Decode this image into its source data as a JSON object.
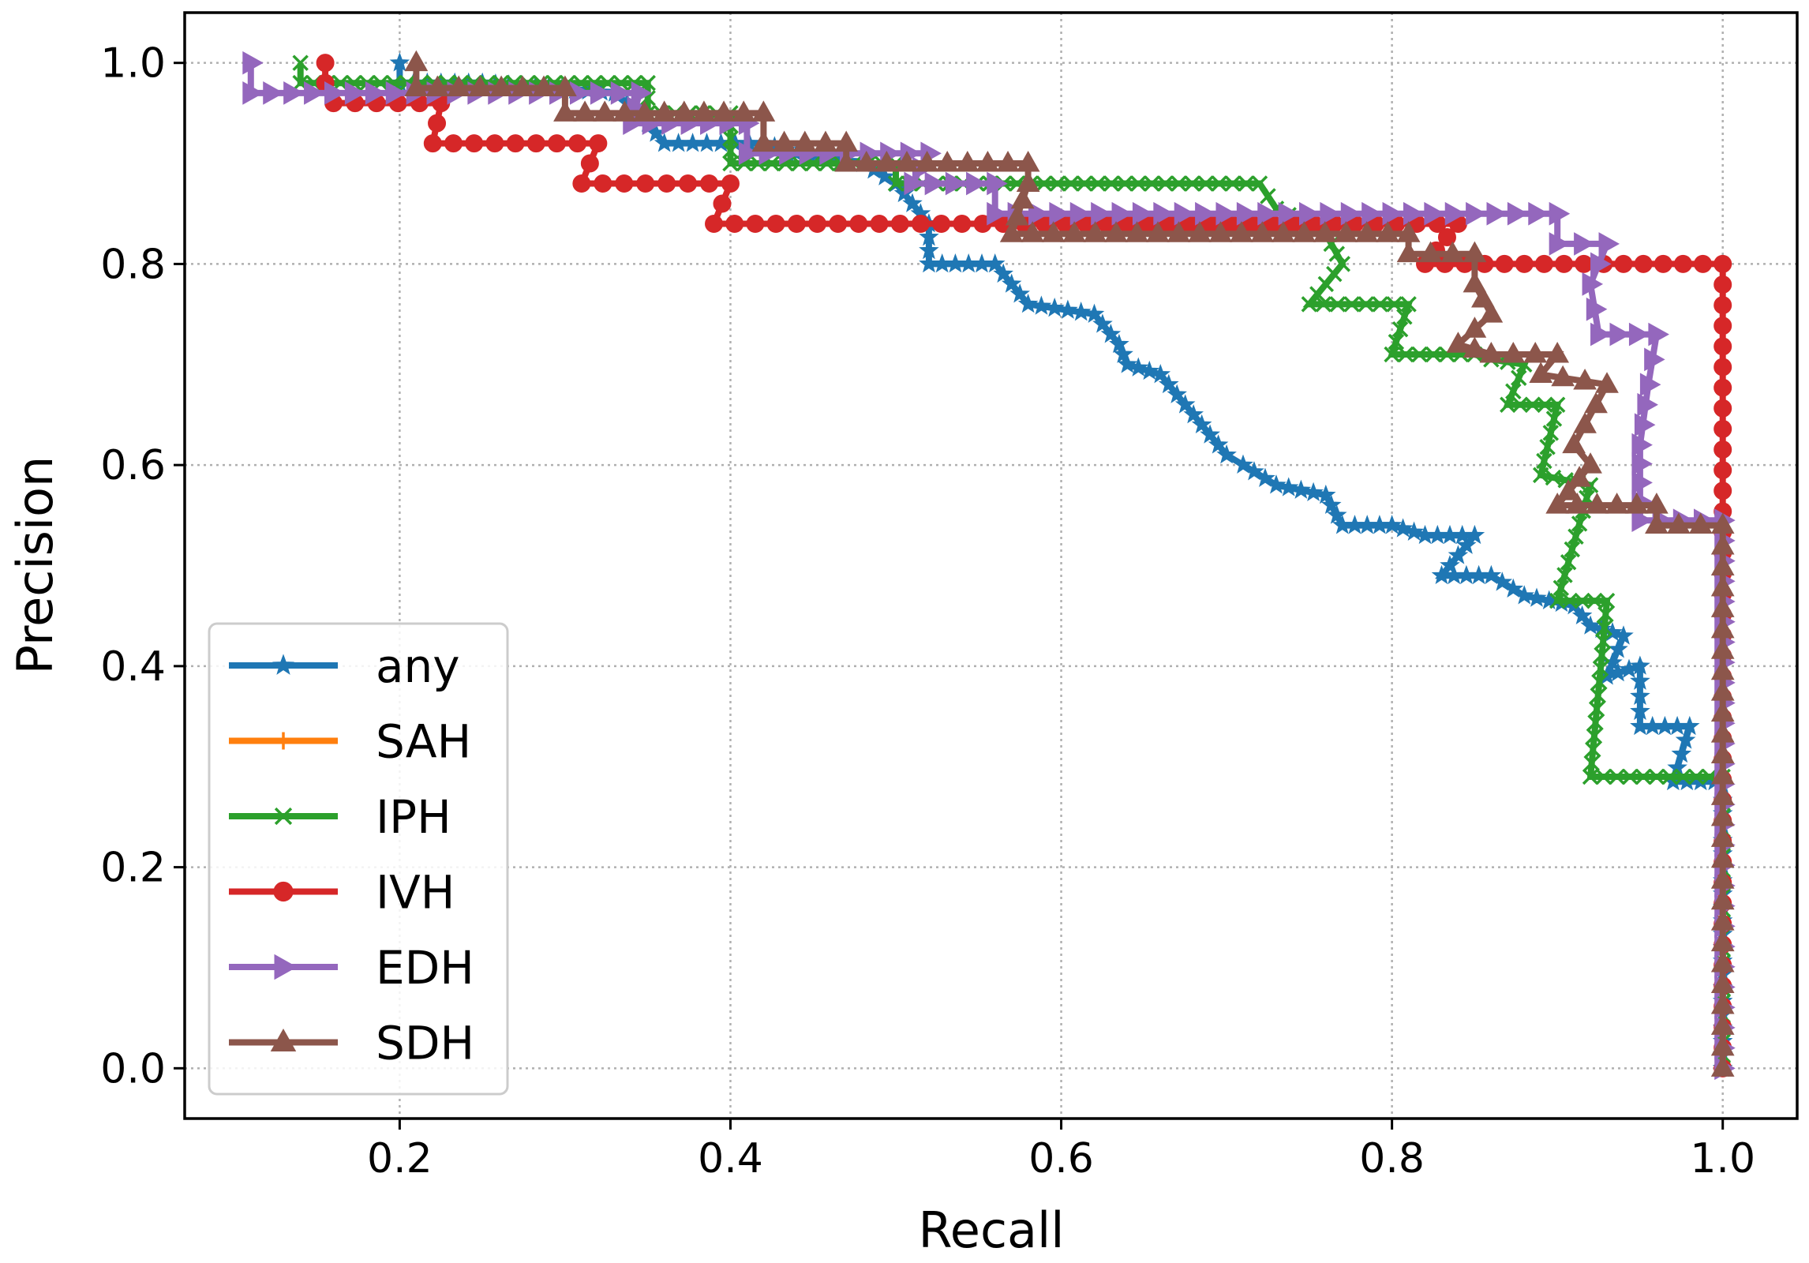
{
  "chart_data": {
    "type": "line",
    "title": "",
    "xlabel": "Recall",
    "ylabel": "Precision",
    "xlim": [
      0.07,
      1.045
    ],
    "ylim": [
      -0.05,
      1.05
    ],
    "grid": true,
    "legend_position": "lower-left",
    "x_ticks": [
      {
        "value": 0.2,
        "label": "0.2"
      },
      {
        "value": 0.4,
        "label": "0.4"
      },
      {
        "value": 0.6,
        "label": "0.6"
      },
      {
        "value": 0.8,
        "label": "0.8"
      },
      {
        "value": 1.0,
        "label": "1.0"
      }
    ],
    "y_ticks": [
      {
        "value": 0.0,
        "label": "0.0"
      },
      {
        "value": 0.2,
        "label": "0.2"
      },
      {
        "value": 0.4,
        "label": "0.4"
      },
      {
        "value": 0.6,
        "label": "0.6"
      },
      {
        "value": 0.8,
        "label": "0.8"
      },
      {
        "value": 1.0,
        "label": "1.0"
      }
    ],
    "series": [
      {
        "name": "any",
        "color": "#1f77b4",
        "marker": "star",
        "points": [
          [
            0.2,
            1.0
          ],
          [
            0.2,
            0.98
          ],
          [
            0.25,
            0.98
          ],
          [
            0.33,
            0.97
          ],
          [
            0.345,
            0.95
          ],
          [
            0.36,
            0.92
          ],
          [
            0.42,
            0.92
          ],
          [
            0.44,
            0.91
          ],
          [
            0.48,
            0.9
          ],
          [
            0.5,
            0.88
          ],
          [
            0.51,
            0.86
          ],
          [
            0.52,
            0.84
          ],
          [
            0.52,
            0.8
          ],
          [
            0.56,
            0.8
          ],
          [
            0.57,
            0.78
          ],
          [
            0.58,
            0.76
          ],
          [
            0.62,
            0.75
          ],
          [
            0.635,
            0.72
          ],
          [
            0.64,
            0.7
          ],
          [
            0.66,
            0.69
          ],
          [
            0.67,
            0.67
          ],
          [
            0.68,
            0.65
          ],
          [
            0.69,
            0.63
          ],
          [
            0.7,
            0.61
          ],
          [
            0.71,
            0.6
          ],
          [
            0.73,
            0.58
          ],
          [
            0.76,
            0.57
          ],
          [
            0.77,
            0.54
          ],
          [
            0.8,
            0.54
          ],
          [
            0.82,
            0.53
          ],
          [
            0.85,
            0.53
          ],
          [
            0.83,
            0.49
          ],
          [
            0.86,
            0.49
          ],
          [
            0.88,
            0.47
          ],
          [
            0.91,
            0.46
          ],
          [
            0.92,
            0.44
          ],
          [
            0.94,
            0.43
          ],
          [
            0.93,
            0.39
          ],
          [
            0.95,
            0.4
          ],
          [
            0.95,
            0.34
          ],
          [
            0.98,
            0.34
          ],
          [
            0.97,
            0.285
          ],
          [
            0.995,
            0.285
          ],
          [
            1.0,
            0.28
          ],
          [
            1.0,
            0.0
          ]
        ]
      },
      {
        "name": "SAH",
        "color": "#ff7f0e",
        "marker": "plus",
        "points": []
      },
      {
        "name": "IPH",
        "color": "#2ca02c",
        "marker": "x",
        "points": [
          [
            0.14,
            1.0
          ],
          [
            0.14,
            0.98
          ],
          [
            0.35,
            0.98
          ],
          [
            0.35,
            0.95
          ],
          [
            0.4,
            0.95
          ],
          [
            0.4,
            0.9
          ],
          [
            0.5,
            0.9
          ],
          [
            0.5,
            0.88
          ],
          [
            0.72,
            0.88
          ],
          [
            0.73,
            0.855
          ],
          [
            0.76,
            0.83
          ],
          [
            0.77,
            0.8
          ],
          [
            0.75,
            0.76
          ],
          [
            0.81,
            0.76
          ],
          [
            0.8,
            0.71
          ],
          [
            0.85,
            0.71
          ],
          [
            0.86,
            0.705
          ],
          [
            0.88,
            0.7
          ],
          [
            0.87,
            0.66
          ],
          [
            0.9,
            0.66
          ],
          [
            0.89,
            0.59
          ],
          [
            0.92,
            0.58
          ],
          [
            0.9,
            0.465
          ],
          [
            0.93,
            0.465
          ],
          [
            0.92,
            0.29
          ],
          [
            1.0,
            0.29
          ],
          [
            1.0,
            0.0
          ]
        ]
      },
      {
        "name": "IVH",
        "color": "#d62728",
        "marker": "circle",
        "points": [
          [
            0.155,
            1.0
          ],
          [
            0.155,
            0.98
          ],
          [
            0.16,
            0.96
          ],
          [
            0.225,
            0.96
          ],
          [
            0.22,
            0.92
          ],
          [
            0.32,
            0.92
          ],
          [
            0.31,
            0.88
          ],
          [
            0.4,
            0.88
          ],
          [
            0.39,
            0.84
          ],
          [
            0.84,
            0.84
          ],
          [
            0.82,
            0.8
          ],
          [
            1.0,
            0.8
          ],
          [
            1.0,
            0.0
          ]
        ]
      },
      {
        "name": "EDH",
        "color": "#9467bd",
        "marker": "triangle-right",
        "points": [
          [
            0.11,
            1.0
          ],
          [
            0.11,
            0.97
          ],
          [
            0.345,
            0.97
          ],
          [
            0.34,
            0.94
          ],
          [
            0.41,
            0.94
          ],
          [
            0.41,
            0.91
          ],
          [
            0.52,
            0.91
          ],
          [
            0.51,
            0.88
          ],
          [
            0.56,
            0.88
          ],
          [
            0.56,
            0.85
          ],
          [
            0.9,
            0.85
          ],
          [
            0.9,
            0.82
          ],
          [
            0.93,
            0.82
          ],
          [
            0.92,
            0.78
          ],
          [
            0.925,
            0.73
          ],
          [
            0.96,
            0.73
          ],
          [
            0.955,
            0.68
          ],
          [
            0.95,
            0.62
          ],
          [
            0.95,
            0.545
          ],
          [
            1.0,
            0.545
          ],
          [
            1.0,
            0.0
          ]
        ]
      },
      {
        "name": "SDH",
        "color": "#8c564b",
        "marker": "triangle-up",
        "points": [
          [
            0.21,
            1.0
          ],
          [
            0.21,
            0.975
          ],
          [
            0.3,
            0.975
          ],
          [
            0.3,
            0.95
          ],
          [
            0.42,
            0.95
          ],
          [
            0.42,
            0.92
          ],
          [
            0.47,
            0.92
          ],
          [
            0.47,
            0.9
          ],
          [
            0.58,
            0.9
          ],
          [
            0.58,
            0.88
          ],
          [
            0.57,
            0.83
          ],
          [
            0.81,
            0.83
          ],
          [
            0.81,
            0.81
          ],
          [
            0.85,
            0.81
          ],
          [
            0.85,
            0.78
          ],
          [
            0.86,
            0.75
          ],
          [
            0.84,
            0.72
          ],
          [
            0.86,
            0.71
          ],
          [
            0.9,
            0.71
          ],
          [
            0.89,
            0.69
          ],
          [
            0.93,
            0.68
          ],
          [
            0.91,
            0.62
          ],
          [
            0.92,
            0.6
          ],
          [
            0.9,
            0.56
          ],
          [
            0.96,
            0.56
          ],
          [
            0.96,
            0.54
          ],
          [
            1.0,
            0.54
          ],
          [
            1.0,
            0.0
          ]
        ]
      }
    ]
  }
}
